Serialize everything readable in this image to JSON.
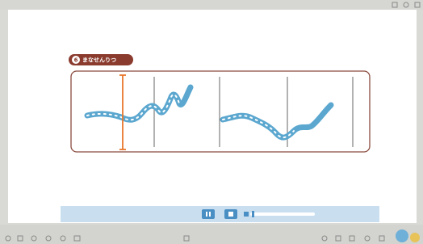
{
  "badge": {
    "number": "6",
    "label": "まなせんりつ"
  }
}
